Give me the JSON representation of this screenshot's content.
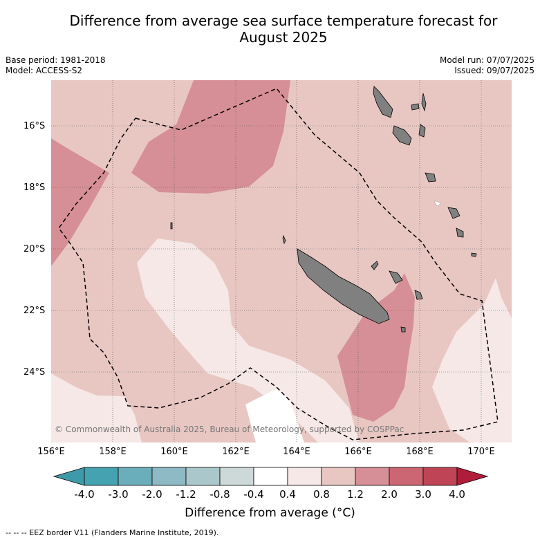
{
  "title": "Difference from average sea surface temperature forecast for August 2025",
  "title_line1": "Difference from average sea surface temperature forecast for",
  "title_line2": "August 2025",
  "meta": {
    "base_period": "Base period: 1981-2018",
    "model": "Model: ACCESS-S2",
    "model_run": "Model run: 07/07/2025",
    "issued": "Issued: 09/07/2025"
  },
  "map": {
    "lon_range": [
      156,
      171
    ],
    "lat_range": [
      -26.0,
      -14.2
    ],
    "lat_ticks": [
      "16°S",
      "18°S",
      "20°S",
      "22°S",
      "24°S"
    ],
    "lon_ticks": [
      "156°E",
      "158°E",
      "160°E",
      "162°E",
      "164°E",
      "166°E",
      "168°E",
      "170°E"
    ],
    "land_color": "#808080",
    "background_fill": "#e8c7c3"
  },
  "copyright": "© Commonwealth of Australia 2025, Bureau of Meteorology, supported by COSPPac",
  "colorbar": {
    "labels": [
      "-4.0",
      "-3.0",
      "-2.0",
      "-1.2",
      "-0.8",
      "-0.4",
      "0.4",
      "0.8",
      "1.2",
      "2.0",
      "3.0",
      "4.0"
    ],
    "colors": [
      "#3e9aa8",
      "#45a2b1",
      "#6aaebb",
      "#8dbac4",
      "#aac8cc",
      "#cdd8d9",
      "#ffffff",
      "#f5e8e6",
      "#e8c7c3",
      "#d68f96",
      "#cc6672",
      "#bf4455",
      "#b01d3a"
    ],
    "title": "Difference from average (",
    "title_unit": "°C)"
  },
  "legend_footer": "--  --  -- EEZ border V11 (Flanders Marine Institute, 2019)."
}
